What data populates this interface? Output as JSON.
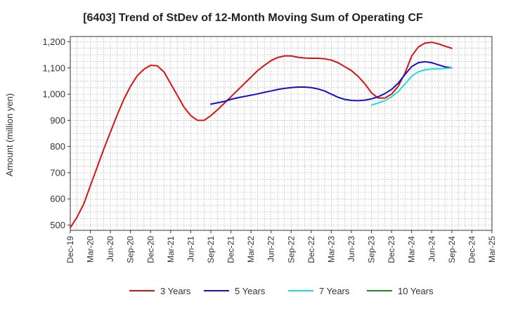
{
  "chart_data": {
    "type": "line",
    "title": "[6403]  Trend of StDev of 12-Month Moving Sum of Operating CF",
    "xlabel": "",
    "ylabel": "Amount (million yen)",
    "ylim": [
      480,
      1220
    ],
    "yticks": [
      500,
      600,
      700,
      800,
      900,
      1000,
      1100,
      1200
    ],
    "ytick_labels": [
      "500",
      "600",
      "700",
      "800",
      "900",
      "1,000",
      "1,100",
      "1,200"
    ],
    "x_start": "Dec-19",
    "x_end": "Mar-25",
    "x_tick_labels": [
      "Dec-19",
      "Mar-20",
      "Jun-20",
      "Sep-20",
      "Dec-20",
      "Mar-21",
      "Jun-21",
      "Sep-21",
      "Dec-21",
      "Mar-22",
      "Jun-22",
      "Sep-22",
      "Dec-22",
      "Mar-23",
      "Jun-23",
      "Sep-23",
      "Dec-23",
      "Mar-24",
      "Jun-24",
      "Sep-24",
      "Dec-24",
      "Mar-25"
    ],
    "grid": true,
    "legend_position": "bottom",
    "series": [
      {
        "name": "3 Years",
        "color": "#dd1111",
        "points": [
          [
            "2019-12",
            490
          ],
          [
            "2020-01",
            530
          ],
          [
            "2020-02",
            580
          ],
          [
            "2020-03",
            650
          ],
          [
            "2020-04",
            720
          ],
          [
            "2020-05",
            790
          ],
          [
            "2020-06",
            855
          ],
          [
            "2020-07",
            920
          ],
          [
            "2020-08",
            980
          ],
          [
            "2020-09",
            1030
          ],
          [
            "2020-10",
            1070
          ],
          [
            "2020-11",
            1095
          ],
          [
            "2020-12",
            1110
          ],
          [
            "2021-01",
            1108
          ],
          [
            "2021-02",
            1085
          ],
          [
            "2021-03",
            1040
          ],
          [
            "2021-04",
            995
          ],
          [
            "2021-05",
            950
          ],
          [
            "2021-06",
            918
          ],
          [
            "2021-07",
            900
          ],
          [
            "2021-08",
            900
          ],
          [
            "2021-09",
            918
          ],
          [
            "2021-10",
            940
          ],
          [
            "2021-11",
            965
          ],
          [
            "2021-12",
            990
          ],
          [
            "2022-01",
            1015
          ],
          [
            "2022-02",
            1040
          ],
          [
            "2022-03",
            1065
          ],
          [
            "2022-04",
            1090
          ],
          [
            "2022-05",
            1110
          ],
          [
            "2022-06",
            1128
          ],
          [
            "2022-07",
            1140
          ],
          [
            "2022-08",
            1146
          ],
          [
            "2022-09",
            1146
          ],
          [
            "2022-10",
            1141
          ],
          [
            "2022-11",
            1138
          ],
          [
            "2022-12",
            1137
          ],
          [
            "2023-01",
            1137
          ],
          [
            "2023-02",
            1135
          ],
          [
            "2023-03",
            1130
          ],
          [
            "2023-04",
            1120
          ],
          [
            "2023-05",
            1105
          ],
          [
            "2023-06",
            1090
          ],
          [
            "2023-07",
            1068
          ],
          [
            "2023-08",
            1040
          ],
          [
            "2023-09",
            1005
          ],
          [
            "2023-10",
            985
          ],
          [
            "2023-11",
            985
          ],
          [
            "2023-12",
            1000
          ],
          [
            "2024-01",
            1030
          ],
          [
            "2024-02",
            1080
          ],
          [
            "2024-03",
            1145
          ],
          [
            "2024-04",
            1180
          ],
          [
            "2024-05",
            1195
          ],
          [
            "2024-06",
            1198
          ],
          [
            "2024-07",
            1192
          ],
          [
            "2024-08",
            1183
          ],
          [
            "2024-09",
            1175
          ]
        ]
      },
      {
        "name": "5 Years",
        "color": "#1111cc",
        "points": [
          [
            "2021-09",
            962
          ],
          [
            "2021-10",
            967
          ],
          [
            "2021-11",
            972
          ],
          [
            "2021-12",
            980
          ],
          [
            "2022-01",
            986
          ],
          [
            "2022-02",
            991
          ],
          [
            "2022-03",
            996
          ],
          [
            "2022-04",
            1001
          ],
          [
            "2022-05",
            1007
          ],
          [
            "2022-06",
            1012
          ],
          [
            "2022-07",
            1018
          ],
          [
            "2022-08",
            1022
          ],
          [
            "2022-09",
            1025
          ],
          [
            "2022-10",
            1027
          ],
          [
            "2022-11",
            1027
          ],
          [
            "2022-12",
            1025
          ],
          [
            "2023-01",
            1020
          ],
          [
            "2023-02",
            1012
          ],
          [
            "2023-03",
            1000
          ],
          [
            "2023-04",
            988
          ],
          [
            "2023-05",
            980
          ],
          [
            "2023-06",
            976
          ],
          [
            "2023-07",
            975
          ],
          [
            "2023-08",
            977
          ],
          [
            "2023-09",
            982
          ],
          [
            "2023-10",
            990
          ],
          [
            "2023-11",
            1002
          ],
          [
            "2023-12",
            1018
          ],
          [
            "2024-01",
            1042
          ],
          [
            "2024-02",
            1075
          ],
          [
            "2024-03",
            1105
          ],
          [
            "2024-04",
            1120
          ],
          [
            "2024-05",
            1124
          ],
          [
            "2024-06",
            1120
          ],
          [
            "2024-07",
            1112
          ],
          [
            "2024-08",
            1104
          ],
          [
            "2024-09",
            1100
          ]
        ]
      },
      {
        "name": "7 Years",
        "color": "#22dddd",
        "points": [
          [
            "2023-09",
            958
          ],
          [
            "2023-10",
            966
          ],
          [
            "2023-11",
            975
          ],
          [
            "2023-12",
            990
          ],
          [
            "2024-01",
            1010
          ],
          [
            "2024-02",
            1038
          ],
          [
            "2024-03",
            1068
          ],
          [
            "2024-04",
            1085
          ],
          [
            "2024-05",
            1093
          ],
          [
            "2024-06",
            1096
          ],
          [
            "2024-07",
            1097
          ],
          [
            "2024-08",
            1098
          ],
          [
            "2024-09",
            1100
          ]
        ]
      },
      {
        "name": "10 Years",
        "color": "#228822",
        "points": []
      }
    ]
  }
}
